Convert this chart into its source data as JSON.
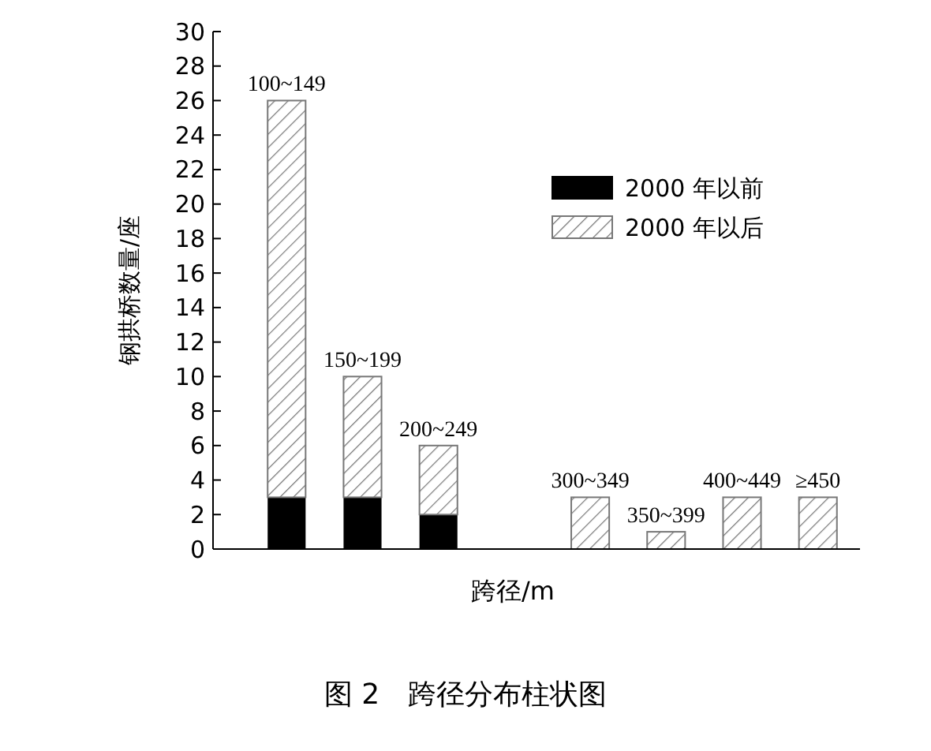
{
  "chart_data": {
    "type": "bar",
    "stacked": true,
    "xlabel": "跨径/m",
    "ylabel": "钢拱桥数量/座",
    "categories": [
      "100~149",
      "150~199",
      "200~249",
      null,
      "300~349",
      "350~399",
      "400~449",
      "≥450"
    ],
    "series": [
      {
        "name": "2000 年以前",
        "color": "#000000",
        "values": [
          3,
          3,
          2,
          0,
          0,
          0,
          0,
          0
        ]
      },
      {
        "name": "2000 年以后",
        "color": "#777777",
        "values": [
          23,
          7,
          4,
          0,
          3,
          1,
          3,
          3
        ]
      }
    ],
    "ylim": [
      0,
      30
    ],
    "yticks": [
      0,
      2,
      4,
      6,
      8,
      10,
      12,
      14,
      16,
      18,
      20,
      22,
      24,
      26,
      28,
      30
    ],
    "grid": false,
    "legend": "top right",
    "annotations": [
      "图 2　跨径分布柱状图"
    ]
  }
}
